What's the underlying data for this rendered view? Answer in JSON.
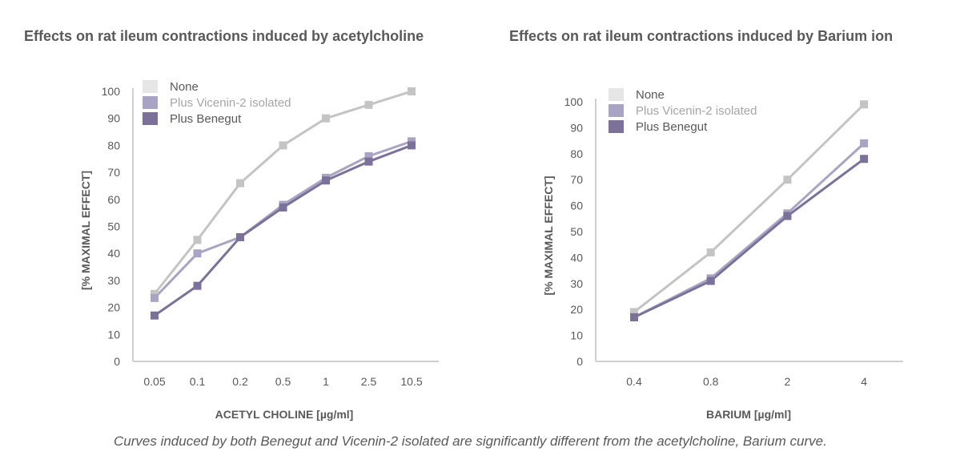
{
  "caption": "Curves induced by both Benegut and Vicenin-2 isolated are significantly different from the acetylcholine, Barium curve.",
  "colors": {
    "none": "#c4c4c4",
    "vicenin": "#a9a4c4",
    "benegut": "#7b7199",
    "axis": "#d0d0d0",
    "text": "#595959",
    "legend_vicenin_text": "#a6a6a6"
  },
  "chart_data": [
    {
      "type": "line",
      "title": "Effects on rat ileum contractions induced by acetylcholine",
      "xlabel": "ACETYL CHOLINE  [µg/ml]",
      "ylabel": "[% MAXIMAL EFFECT]",
      "categories": [
        "0.05",
        "0.1",
        "0.2",
        "0.5",
        "1",
        "2.5",
        "10.5"
      ],
      "ylim": [
        0,
        100
      ],
      "yticks": [
        "0",
        "10",
        "20",
        "30",
        "40",
        "50",
        "60",
        "70",
        "80",
        "90",
        "100"
      ],
      "grid": false,
      "legend": "top-left",
      "series": [
        {
          "name": "None",
          "values": [
            25,
            45,
            66,
            80,
            90,
            95,
            100
          ]
        },
        {
          "name": "Plus Vicenin-2 isolated",
          "values": [
            23.5,
            40,
            46,
            58,
            68,
            76,
            81.5
          ]
        },
        {
          "name": "Plus Benegut",
          "values": [
            17,
            28,
            46,
            57,
            67,
            74,
            80
          ]
        }
      ]
    },
    {
      "type": "line",
      "title": "Effects on rat ileum contractions induced by Barium ion",
      "xlabel": "BARIUM [µg/ml]",
      "ylabel": "[% MAXIMAL EFFECT]",
      "categories": [
        "0.4",
        "0.8",
        "2",
        "4"
      ],
      "ylim": [
        0,
        100
      ],
      "yticks": [
        "0",
        "10",
        "20",
        "30",
        "40",
        "50",
        "60",
        "70",
        "80",
        "90",
        "100"
      ],
      "grid": false,
      "legend": "top-left",
      "series": [
        {
          "name": "None",
          "values": [
            19,
            42,
            70,
            99
          ]
        },
        {
          "name": "Plus Vicenin-2 isolated",
          "values": [
            17,
            32,
            57,
            84
          ]
        },
        {
          "name": "Plus Benegut",
          "values": [
            17,
            31,
            56,
            78
          ]
        }
      ]
    }
  ]
}
